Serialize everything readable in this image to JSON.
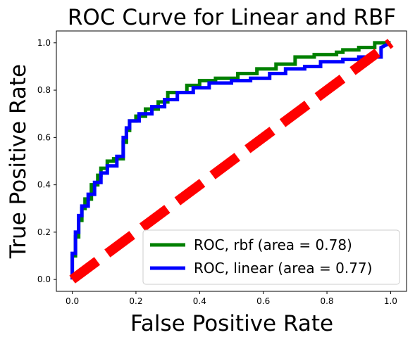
{
  "chart_data": {
    "type": "line",
    "title": "ROC Curve for Linear and RBF",
    "xlabel": "False Positive Rate",
    "ylabel": "True Positive Rate",
    "xlim": [
      -0.05,
      1.05
    ],
    "ylim": [
      -0.05,
      1.05
    ],
    "xticks": [
      "0.0",
      "0.2",
      "0.4",
      "0.6",
      "0.8",
      "1.0"
    ],
    "yticks": [
      "0.0",
      "0.2",
      "0.4",
      "0.6",
      "0.8",
      "1.0"
    ],
    "grid": false,
    "legend_position": "bottom-right",
    "series": [
      {
        "name": "ROC, rbf (area = 0.78)",
        "color": "#008000",
        "style": "solid",
        "x": [
          0.0,
          0.0,
          0.01,
          0.01,
          0.02,
          0.02,
          0.03,
          0.03,
          0.04,
          0.04,
          0.06,
          0.06,
          0.08,
          0.08,
          0.09,
          0.09,
          0.11,
          0.11,
          0.13,
          0.13,
          0.16,
          0.16,
          0.17,
          0.17,
          0.18,
          0.18,
          0.2,
          0.2,
          0.23,
          0.23,
          0.27,
          0.27,
          0.3,
          0.3,
          0.36,
          0.36,
          0.4,
          0.4,
          0.45,
          0.45,
          0.52,
          0.52,
          0.58,
          0.58,
          0.64,
          0.64,
          0.7,
          0.7,
          0.76,
          0.76,
          0.83,
          0.83,
          0.85,
          0.85,
          0.9,
          0.9,
          0.95,
          0.95,
          1.0
        ],
        "y": [
          0.0,
          0.1,
          0.1,
          0.18,
          0.18,
          0.25,
          0.25,
          0.3,
          0.3,
          0.34,
          0.34,
          0.4,
          0.4,
          0.44,
          0.44,
          0.47,
          0.47,
          0.5,
          0.5,
          0.51,
          0.51,
          0.58,
          0.58,
          0.63,
          0.63,
          0.67,
          0.67,
          0.69,
          0.69,
          0.72,
          0.72,
          0.75,
          0.75,
          0.79,
          0.79,
          0.82,
          0.82,
          0.84,
          0.84,
          0.85,
          0.85,
          0.87,
          0.87,
          0.89,
          0.89,
          0.91,
          0.91,
          0.94,
          0.94,
          0.95,
          0.95,
          0.96,
          0.96,
          0.97,
          0.97,
          0.98,
          0.98,
          1.0,
          1.0
        ]
      },
      {
        "name": "ROC, linear (area = 0.77)",
        "color": "#0000ff",
        "style": "solid",
        "x": [
          0.0,
          0.0,
          0.01,
          0.01,
          0.02,
          0.02,
          0.03,
          0.03,
          0.05,
          0.05,
          0.07,
          0.07,
          0.09,
          0.09,
          0.11,
          0.11,
          0.14,
          0.14,
          0.16,
          0.16,
          0.17,
          0.17,
          0.18,
          0.18,
          0.21,
          0.21,
          0.25,
          0.25,
          0.29,
          0.29,
          0.33,
          0.33,
          0.38,
          0.38,
          0.43,
          0.43,
          0.5,
          0.5,
          0.56,
          0.56,
          0.62,
          0.62,
          0.67,
          0.67,
          0.73,
          0.73,
          0.78,
          0.78,
          0.85,
          0.85,
          0.9,
          0.9,
          0.97,
          0.97,
          1.0
        ],
        "y": [
          0.0,
          0.11,
          0.11,
          0.2,
          0.2,
          0.27,
          0.27,
          0.31,
          0.31,
          0.36,
          0.36,
          0.41,
          0.41,
          0.45,
          0.45,
          0.48,
          0.48,
          0.52,
          0.52,
          0.6,
          0.6,
          0.64,
          0.64,
          0.67,
          0.67,
          0.7,
          0.7,
          0.73,
          0.73,
          0.76,
          0.76,
          0.79,
          0.79,
          0.81,
          0.81,
          0.83,
          0.83,
          0.84,
          0.84,
          0.85,
          0.85,
          0.87,
          0.87,
          0.89,
          0.89,
          0.9,
          0.9,
          0.92,
          0.92,
          0.93,
          0.93,
          0.94,
          0.94,
          0.98,
          1.0
        ]
      },
      {
        "name": "",
        "color": "#ff0000",
        "style": "dashed",
        "x": [
          0.0,
          1.0
        ],
        "y": [
          0.0,
          1.0
        ]
      }
    ]
  }
}
